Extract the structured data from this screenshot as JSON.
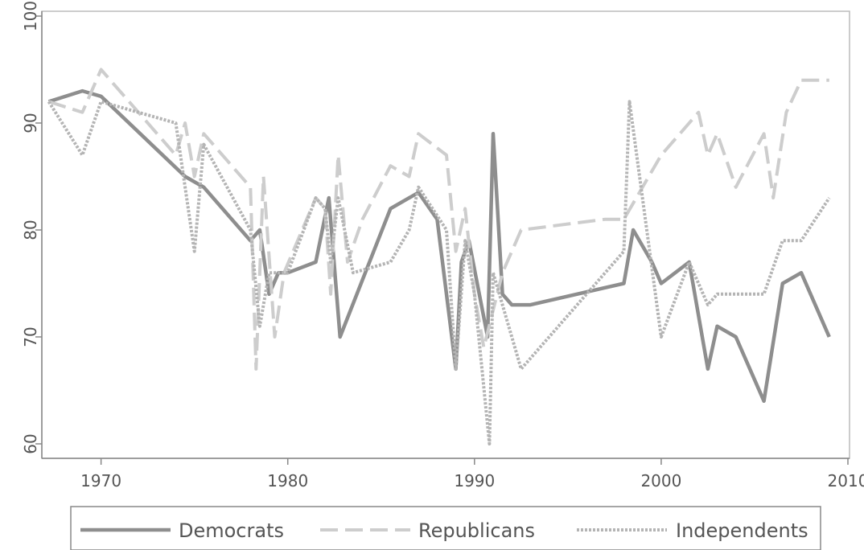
{
  "chart_data": {
    "type": "line",
    "title": "",
    "xlabel": "",
    "ylabel": "",
    "xlim": [
      1967,
      2010
    ],
    "ylim": [
      60,
      100
    ],
    "x_ticks": [
      1970,
      1980,
      1990,
      2000,
      2010
    ],
    "y_ticks": [
      60,
      70,
      80,
      90,
      100
    ],
    "grid": false,
    "legend_position": "bottom",
    "colors": {
      "Democrats": "#8e8e8e",
      "Republicans": "#cdcdcd",
      "Independents": "#b4b4b4"
    },
    "series": [
      {
        "name": "Democrats",
        "style": "solid",
        "x": [
          1967.2,
          1969,
          1970,
          1974.5,
          1975.5,
          1978,
          1978.5,
          1979,
          1979.5,
          1980,
          1981.5,
          1982.2,
          1982.8,
          1985.5,
          1987,
          1988,
          1989,
          1989.3,
          1989.7,
          1990.7,
          1991,
          1991.5,
          1992,
          1993,
          1998,
          1998.5,
          1999.5,
          2000,
          2001.5,
          2002.5,
          2003,
          2004,
          2005.5,
          2006.5,
          2007.5,
          2009
        ],
        "y": [
          92,
          93,
          92.5,
          85,
          84,
          79,
          80,
          74,
          76,
          76,
          77,
          83,
          70,
          82,
          83.5,
          81,
          67,
          77,
          79,
          70,
          89,
          74,
          73,
          73,
          75,
          80,
          77,
          75,
          77,
          67,
          71,
          70,
          64,
          75,
          76,
          70
        ]
      },
      {
        "name": "Republicans",
        "style": "dashed",
        "x": [
          1967.2,
          1969,
          1970,
          1974,
          1974.5,
          1975,
          1975.5,
          1978,
          1978.3,
          1978.7,
          1979.3,
          1979.8,
          1981.5,
          1982,
          1982.3,
          1982.7,
          1983.2,
          1984,
          1985.5,
          1986.5,
          1987,
          1988.5,
          1989,
          1989.5,
          1990,
          1990.5,
          1991.5,
          1992.5,
          1997,
          1998,
          2000,
          2002,
          2002.5,
          2003,
          2004,
          2005.5,
          2006,
          2006.7,
          2007.5,
          2009
        ],
        "y": [
          92,
          91,
          95,
          87,
          90,
          85,
          89,
          84,
          67,
          85,
          70,
          76,
          83,
          82,
          74,
          87,
          77,
          81,
          86,
          85,
          89,
          87,
          78,
          82,
          74,
          69,
          76,
          80,
          81,
          81,
          87,
          91,
          87,
          89,
          84,
          89,
          83,
          91,
          94,
          94
        ]
      },
      {
        "name": "Independents",
        "style": "dotted",
        "x": [
          1967.2,
          1969,
          1970,
          1974,
          1975,
          1975.5,
          1978,
          1978.5,
          1979,
          1980,
          1981.5,
          1982,
          1982.3,
          1982.7,
          1983.5,
          1985.5,
          1986.5,
          1987,
          1988.5,
          1989,
          1989.5,
          1990,
          1990.8,
          1991,
          1992.5,
          1998,
          1998.3,
          2000,
          2001.5,
          2002.5,
          2003,
          2004,
          2005.5,
          2006.5,
          2007.5,
          2009
        ],
        "y": [
          92,
          87,
          92,
          90,
          78,
          88,
          80,
          71,
          76,
          76,
          83,
          82,
          77,
          83,
          76,
          77,
          80,
          84,
          80,
          67,
          79,
          74,
          60,
          76,
          67,
          78,
          92,
          70,
          77,
          73,
          74,
          74,
          74,
          79,
          79,
          83
        ]
      }
    ]
  }
}
